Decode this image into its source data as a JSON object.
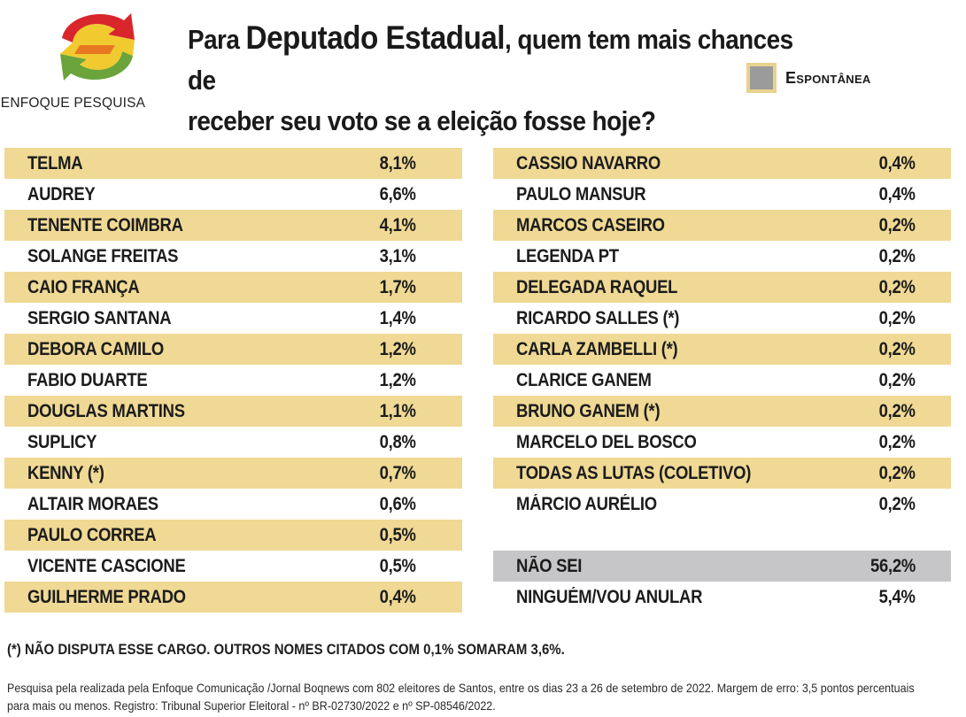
{
  "brand": {
    "name": "ENFOQUE PESQUISA"
  },
  "title": {
    "part1": "Para ",
    "emphasis": "Deputado Estadual",
    "part2": ", quem tem mais chances de",
    "line2": "receber seu voto se a eleição fosse hoje?"
  },
  "legend": {
    "label": "Espontânea",
    "swatch_color": "#9b9b9b",
    "border_color": "#e9d28e"
  },
  "colors": {
    "band": "#efd994",
    "highlight": "#c6c6c8"
  },
  "left_column": [
    {
      "name": "TELMA",
      "pct": "8,1%"
    },
    {
      "name": "AUDREY",
      "pct": "6,6%"
    },
    {
      "name": "TENENTE COIMBRA",
      "pct": "4,1%"
    },
    {
      "name": "SOLANGE FREITAS",
      "pct": "3,1%"
    },
    {
      "name": "CAIO FRANÇA",
      "pct": "1,7%"
    },
    {
      "name": "SERGIO SANTANA",
      "pct": "1,4%"
    },
    {
      "name": "DEBORA CAMILO",
      "pct": "1,2%"
    },
    {
      "name": "FABIO DUARTE",
      "pct": "1,2%"
    },
    {
      "name": "DOUGLAS MARTINS",
      "pct": "1,1%"
    },
    {
      "name": "SUPLICY",
      "pct": "0,8%"
    },
    {
      "name": "KENNY (*)",
      "pct": "0,7%"
    },
    {
      "name": "ALTAIR MORAES",
      "pct": "0,6%"
    },
    {
      "name": "PAULO CORREA",
      "pct": "0,5%"
    },
    {
      "name": "VICENTE CASCIONE",
      "pct": "0,5%"
    },
    {
      "name": "GUILHERME PRADO",
      "pct": "0,4%"
    }
  ],
  "right_column": [
    {
      "name": "CASSIO NAVARRO",
      "pct": "0,4%"
    },
    {
      "name": "PAULO MANSUR",
      "pct": "0,4%"
    },
    {
      "name": "MARCOS CASEIRO",
      "pct": "0,2%"
    },
    {
      "name": "LEGENDA PT",
      "pct": "0,2%"
    },
    {
      "name": "DELEGADA RAQUEL",
      "pct": "0,2%"
    },
    {
      "name": "RICARDO SALLES (*)",
      "pct": "0,2%"
    },
    {
      "name": "CARLA ZAMBELLI (*)",
      "pct": "0,2%"
    },
    {
      "name": "CLARICE GANEM",
      "pct": "0,2%"
    },
    {
      "name": "BRUNO GANEM (*)",
      "pct": "0,2%"
    },
    {
      "name": "MARCELO DEL BOSCO",
      "pct": "0,2%"
    },
    {
      "name": "TODAS AS LUTAS (COLETIVO)",
      "pct": "0,2%"
    },
    {
      "name": "MÁRCIO AURÉLIO",
      "pct": "0,2%"
    }
  ],
  "summary": [
    {
      "name": "NÃO SEI",
      "pct": "56,2%"
    },
    {
      "name": "NINGUÉM/VOU ANULAR",
      "pct": "5,4%"
    }
  ],
  "footnote": "(*) NÃO DISPUTA ESSE CARGO. OUTROS NOMES CITADOS COM 0,1% SOMARAM 3,6%.",
  "source": {
    "line1": "Pesquisa pela realizada pela Enfoque Comunicação /Jornal Boqnews com 802 eleitores de Santos, entre os dias 23 a 26 de setembro de 2022.  Margem de erro: 3,5 pontos percentuais",
    "line2": "para mais ou menos. Registro: Tribunal Superior Eleitoral - nº BR-02730/2022 e nº SP-08546/2022."
  }
}
